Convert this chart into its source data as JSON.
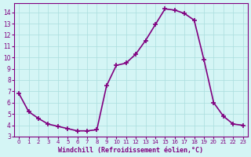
{
  "x": [
    0,
    1,
    2,
    3,
    4,
    5,
    6,
    7,
    8,
    9,
    10,
    11,
    12,
    13,
    14,
    15,
    16,
    17,
    18,
    19,
    20,
    21,
    22,
    23
  ],
  "y": [
    6.8,
    5.2,
    4.6,
    4.1,
    3.9,
    3.7,
    3.5,
    3.5,
    3.6,
    7.5,
    9.3,
    9.5,
    10.3,
    11.5,
    12.9,
    14.3,
    14.2,
    13.9,
    13.3,
    9.8,
    6.0,
    4.8,
    4.1,
    4.0
  ],
  "xlim": [
    -0.5,
    23.5
  ],
  "ylim": [
    3,
    14.8
  ],
  "yticks": [
    3,
    4,
    5,
    6,
    7,
    8,
    9,
    10,
    11,
    12,
    13,
    14
  ],
  "xticks": [
    0,
    1,
    2,
    3,
    4,
    5,
    6,
    7,
    8,
    9,
    10,
    11,
    12,
    13,
    14,
    15,
    16,
    17,
    18,
    19,
    20,
    21,
    22,
    23
  ],
  "xlabel": "Windchill (Refroidissement éolien,°C)",
  "line_color": "#800080",
  "bg_color": "#d4f5f5",
  "grid_color": "#aadddd",
  "marker": "+",
  "linewidth": 1.2
}
